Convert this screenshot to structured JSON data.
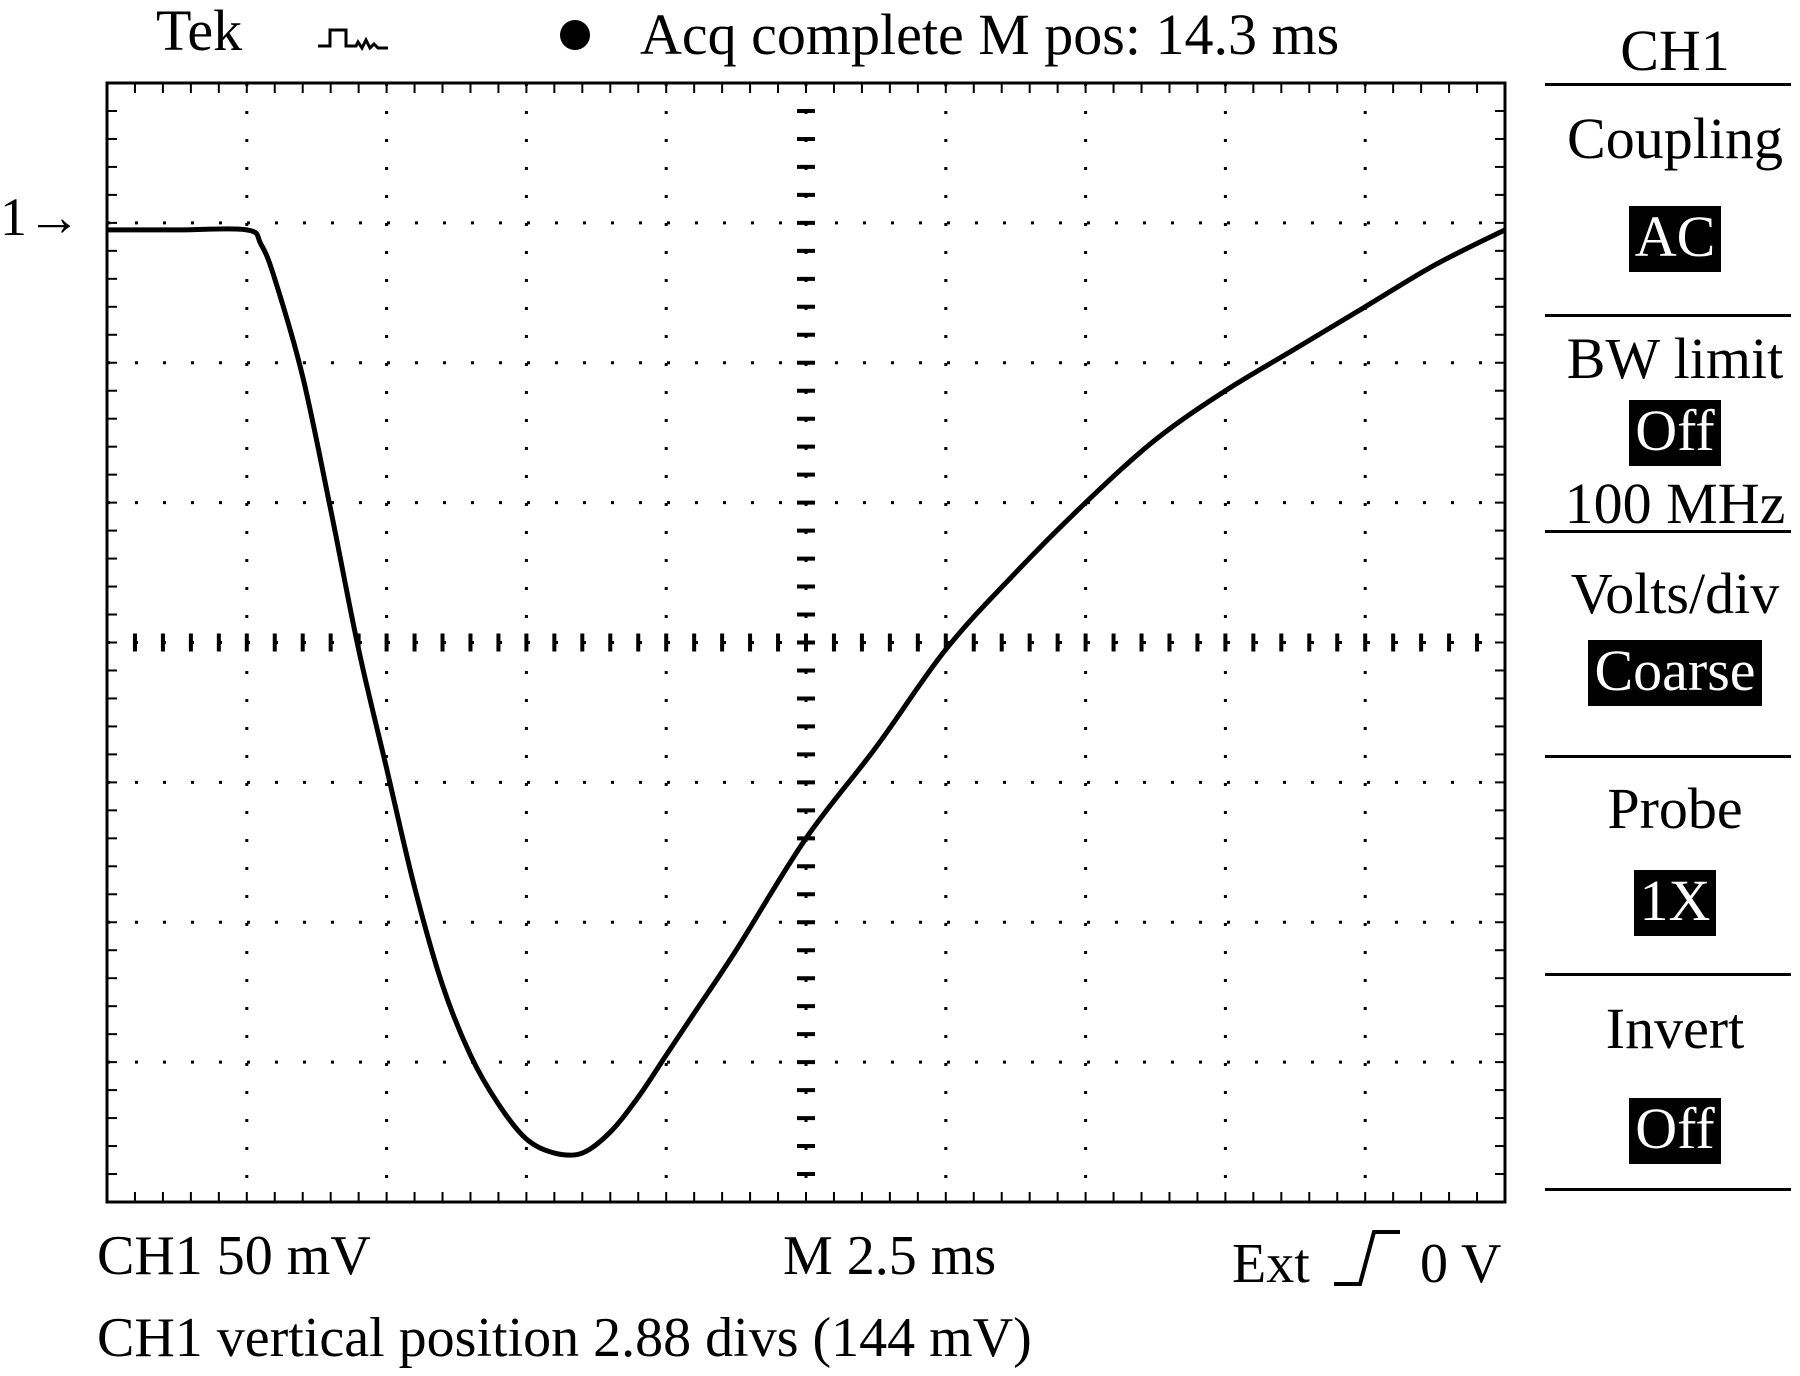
{
  "header": {
    "brand": "Tek",
    "trigger_status_icon": "trigger-pulse-icon",
    "status_dot_icon": "status-dot-icon",
    "status": "Acq complete M pos: 14.3 ms"
  },
  "ground_marker": {
    "label": "1→"
  },
  "side_menu": {
    "title": "CH1",
    "items": [
      {
        "label": "Coupling",
        "value": "AC"
      },
      {
        "label": "BW limit",
        "value": "Off",
        "sub": "100 MHz"
      },
      {
        "label": "Volts/div",
        "value": "Coarse"
      },
      {
        "label": "Probe",
        "value": "1X"
      },
      {
        "label": "Invert",
        "value": "Off"
      }
    ]
  },
  "footer": {
    "ch1_scale": "CH1 50 mV",
    "timebase": "M 2.5 ms",
    "trigger_source": "Ext",
    "trigger_slope_icon": "rising-edge-icon",
    "trigger_level": "0 V",
    "message": "CH1 vertical position 2.88 divs (144 mV)"
  },
  "chart_data": {
    "type": "line",
    "title": "",
    "xlabel": "",
    "ylabel": "",
    "grid": true,
    "x_unit": "div",
    "y_unit": "div",
    "xlim": [
      0,
      10
    ],
    "ylim": [
      -4,
      4
    ],
    "series": [
      {
        "x": [
          0,
          0.5,
          1.0,
          1.1,
          1.2,
          1.4,
          1.6,
          1.8,
          2.0,
          2.2,
          2.4,
          2.6,
          2.8,
          3.0,
          3.2,
          3.4,
          3.6,
          3.8,
          4.0,
          4.2,
          4.5,
          5.0,
          5.5,
          6.0,
          6.5,
          7.0,
          7.5,
          8.0,
          8.5,
          9.0,
          9.5,
          10.0
        ],
        "y": [
          2.95,
          2.95,
          2.95,
          2.85,
          2.6,
          1.9,
          0.95,
          -0.05,
          -0.9,
          -1.75,
          -2.45,
          -2.95,
          -3.3,
          -3.55,
          -3.65,
          -3.65,
          -3.5,
          -3.25,
          -2.95,
          -2.65,
          -2.2,
          -1.4,
          -0.75,
          -0.05,
          0.5,
          1.0,
          1.45,
          1.8,
          2.1,
          2.4,
          2.7,
          2.95
        ]
      }
    ]
  }
}
